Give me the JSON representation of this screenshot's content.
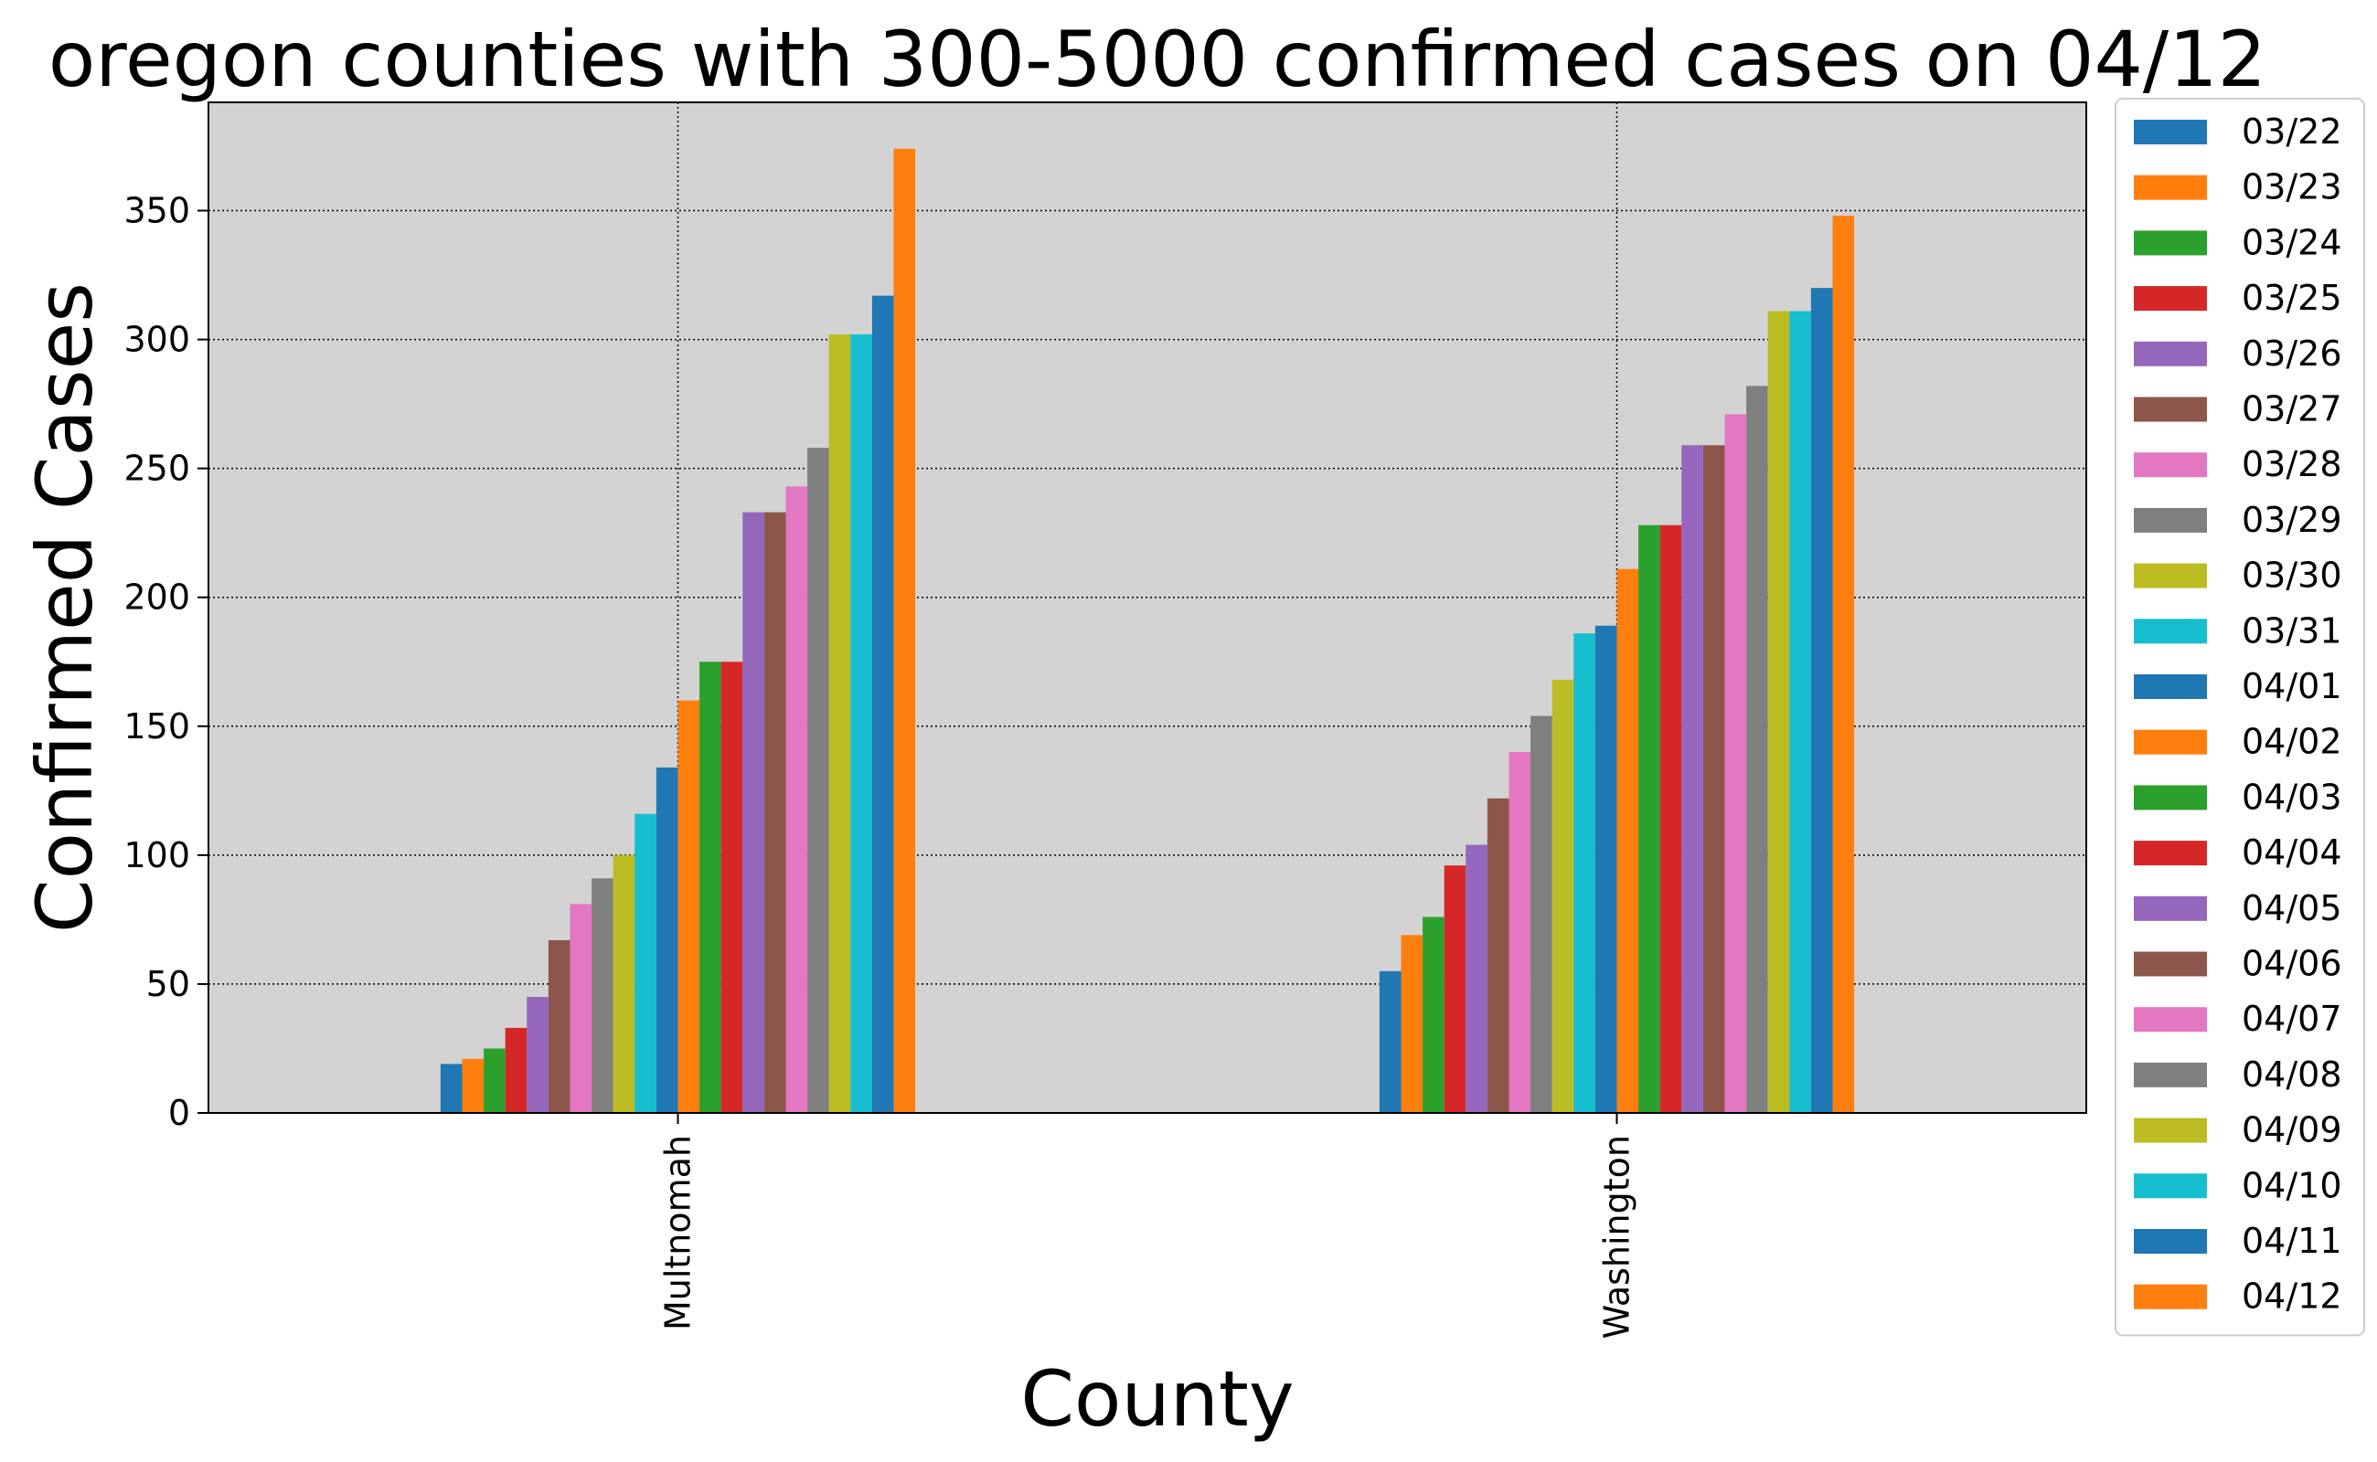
{
  "chart_data": {
    "type": "bar",
    "title": "oregon counties with 300-5000 confirmed cases on 04/12",
    "xlabel": "County",
    "ylabel": "Confirmed Cases",
    "categories": [
      "Multnomah",
      "Washington"
    ],
    "ylim": [
      0,
      392
    ],
    "yticks": [
      0,
      50,
      100,
      150,
      200,
      250,
      300,
      350
    ],
    "grid": true,
    "legend_position": "outside-right",
    "background": "#d3d3d3",
    "series": [
      {
        "name": "03/22",
        "color": "#1f77b4",
        "values": [
          19,
          55
        ]
      },
      {
        "name": "03/23",
        "color": "#ff7f0e",
        "values": [
          21,
          69
        ]
      },
      {
        "name": "03/24",
        "color": "#2ca02c",
        "values": [
          25,
          76
        ]
      },
      {
        "name": "03/25",
        "color": "#d62728",
        "values": [
          33,
          96
        ]
      },
      {
        "name": "03/26",
        "color": "#9467bd",
        "values": [
          45,
          104
        ]
      },
      {
        "name": "03/27",
        "color": "#8c564b",
        "values": [
          67,
          122
        ]
      },
      {
        "name": "03/28",
        "color": "#e377c2",
        "values": [
          81,
          140
        ]
      },
      {
        "name": "03/29",
        "color": "#7f7f7f",
        "values": [
          91,
          154
        ]
      },
      {
        "name": "03/30",
        "color": "#bcbd22",
        "values": [
          100,
          168
        ]
      },
      {
        "name": "03/31",
        "color": "#17becf",
        "values": [
          116,
          186
        ]
      },
      {
        "name": "04/01",
        "color": "#1f77b4",
        "values": [
          134,
          189
        ]
      },
      {
        "name": "04/02",
        "color": "#ff7f0e",
        "values": [
          160,
          211
        ]
      },
      {
        "name": "04/03",
        "color": "#2ca02c",
        "values": [
          175,
          228
        ]
      },
      {
        "name": "04/04",
        "color": "#d62728",
        "values": [
          175,
          228
        ]
      },
      {
        "name": "04/05",
        "color": "#9467bd",
        "values": [
          233,
          259
        ]
      },
      {
        "name": "04/06",
        "color": "#8c564b",
        "values": [
          233,
          259
        ]
      },
      {
        "name": "04/07",
        "color": "#e377c2",
        "values": [
          243,
          271
        ]
      },
      {
        "name": "04/08",
        "color": "#7f7f7f",
        "values": [
          258,
          282
        ]
      },
      {
        "name": "04/09",
        "color": "#bcbd22",
        "values": [
          302,
          311
        ]
      },
      {
        "name": "04/10",
        "color": "#17becf",
        "values": [
          302,
          311
        ]
      },
      {
        "name": "04/11",
        "color": "#1f77b4",
        "values": [
          317,
          320
        ]
      },
      {
        "name": "04/12",
        "color": "#ff7f0e",
        "values": [
          374,
          348
        ]
      }
    ]
  }
}
